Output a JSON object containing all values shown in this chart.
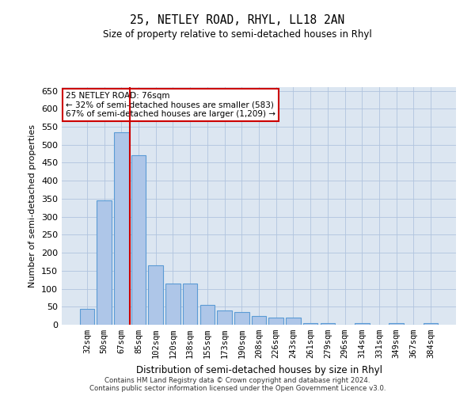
{
  "title": "25, NETLEY ROAD, RHYL, LL18 2AN",
  "subtitle": "Size of property relative to semi-detached houses in Rhyl",
  "xlabel": "Distribution of semi-detached houses by size in Rhyl",
  "ylabel": "Number of semi-detached properties",
  "categories": [
    "32sqm",
    "50sqm",
    "67sqm",
    "85sqm",
    "102sqm",
    "120sqm",
    "138sqm",
    "155sqm",
    "173sqm",
    "190sqm",
    "208sqm",
    "226sqm",
    "243sqm",
    "261sqm",
    "279sqm",
    "296sqm",
    "314sqm",
    "331sqm",
    "349sqm",
    "367sqm",
    "384sqm"
  ],
  "values": [
    45,
    345,
    535,
    470,
    165,
    115,
    115,
    55,
    40,
    35,
    25,
    20,
    20,
    5,
    5,
    0,
    5,
    0,
    5,
    0,
    5
  ],
  "bar_color": "#aec6e8",
  "bar_edge_color": "#5b9bd5",
  "property_bin_index": 2,
  "property_label": "25 NETLEY ROAD: 76sqm",
  "smaller_pct": "32%",
  "smaller_count": "583",
  "larger_pct": "67%",
  "larger_count": "1,209",
  "annotation_box_color": "#cc0000",
  "vline_color": "#cc0000",
  "ylim": [
    0,
    660
  ],
  "yticks": [
    0,
    50,
    100,
    150,
    200,
    250,
    300,
    350,
    400,
    450,
    500,
    550,
    600,
    650
  ],
  "grid_color": "#b0c4de",
  "bg_color": "#dce6f1",
  "footer_line1": "Contains HM Land Registry data © Crown copyright and database right 2024.",
  "footer_line2": "Contains public sector information licensed under the Open Government Licence v3.0."
}
